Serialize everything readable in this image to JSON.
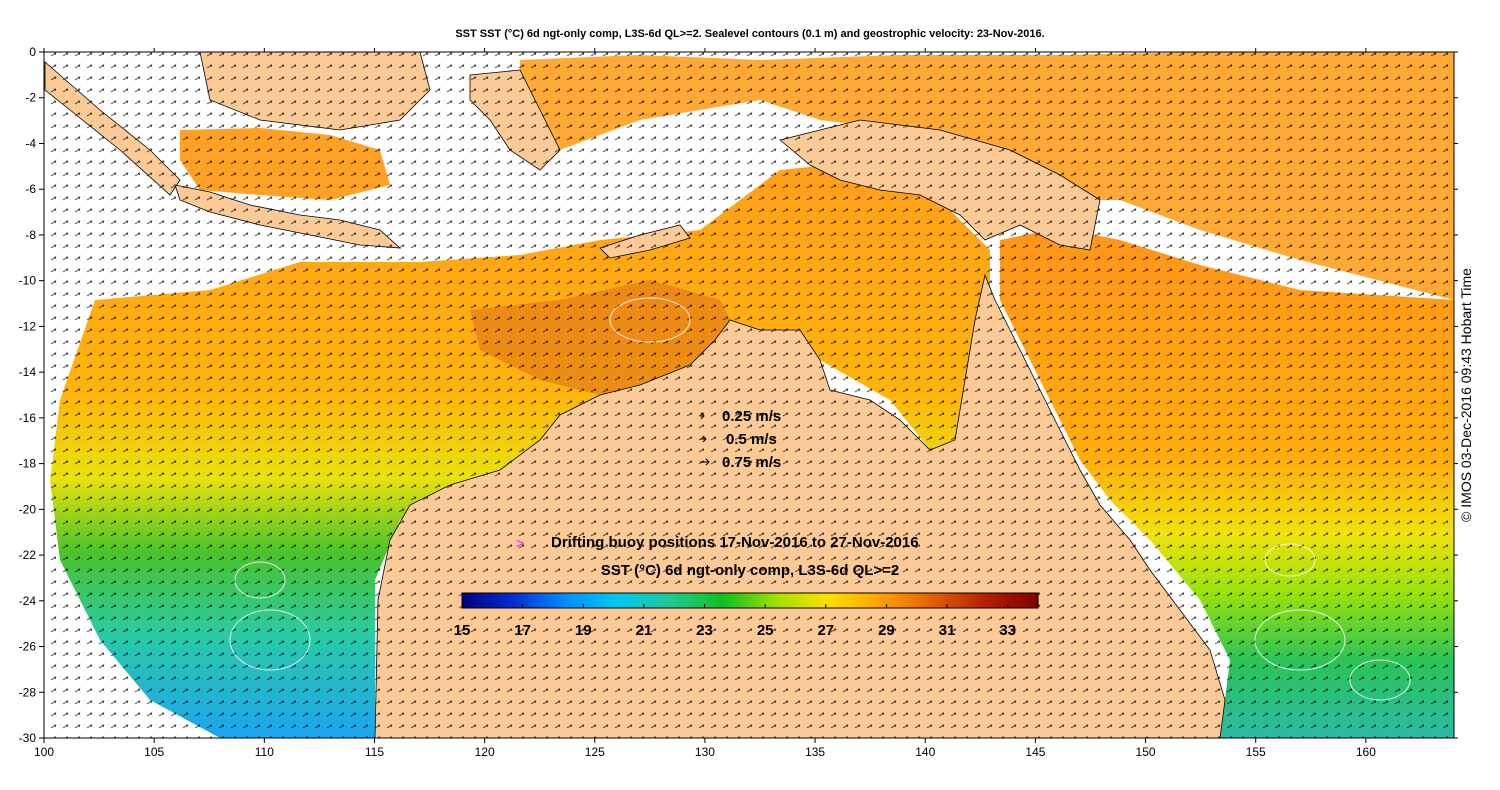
{
  "title": "SST SST (°C) 6d ngt-only comp, L3S-6d QL>=2. Sealevel contours (0.1 m) and geostrophic velocity: 23-Nov-2016.",
  "side_label": "© IMOS 03-Dec-2016 09:43 Hobart Time",
  "axes": {
    "x_range": [
      100,
      164
    ],
    "y_range": [
      -30,
      0
    ],
    "x_ticks": [
      100,
      105,
      110,
      115,
      120,
      125,
      130,
      135,
      140,
      145,
      150,
      155,
      160
    ],
    "y_ticks": [
      0,
      -2,
      -4,
      -6,
      -8,
      -10,
      -12,
      -14,
      -16,
      -18,
      -20,
      -22,
      -24,
      -26,
      -28,
      -30
    ]
  },
  "velocity_legend": [
    {
      "label": "0.25 m/s"
    },
    {
      "label": "0.5 m/s"
    },
    {
      "label": "0.75 m/s"
    }
  ],
  "buoy_legend": {
    "label": "Drifting buoy positions 17-Nov-2016 to 27-Nov-2016",
    "marker_color": "#ff00ff"
  },
  "colorbar": {
    "title": "SST (°C) 6d ngt-only comp, L3S-6d QL>=2",
    "min": 15,
    "max": 34,
    "tick_values": [
      15,
      17,
      19,
      21,
      23,
      25,
      27,
      29,
      31,
      33
    ],
    "colors": [
      "#000080",
      "#0030d0",
      "#0090ff",
      "#00c8f0",
      "#20c890",
      "#10c020",
      "#a0e000",
      "#ffe000",
      "#ffa000",
      "#e06000",
      "#b02000",
      "#800000"
    ]
  },
  "colors": {
    "land": "#fcca96",
    "no_data": "#ffffff"
  }
}
